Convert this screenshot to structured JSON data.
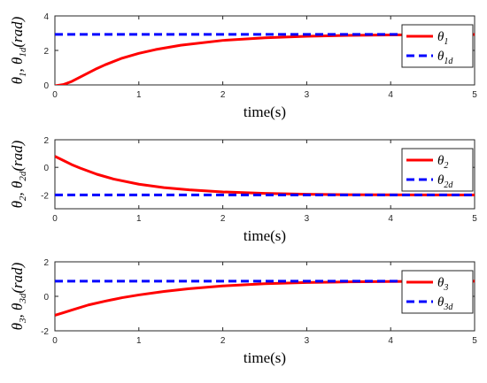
{
  "chart_data": [
    {
      "type": "line",
      "xlabel": "time(s)",
      "ylabel": "θ1, θ1d(rad)",
      "xlim": [
        0,
        5
      ],
      "ylim": [
        0,
        4
      ],
      "xticks": [
        "0",
        "1",
        "2",
        "3",
        "4",
        "5"
      ],
      "yticks": [
        "0",
        "2",
        "4"
      ],
      "grid": false,
      "legend_position": "top-right",
      "series": [
        {
          "name": "θ1",
          "color": "#ff0000",
          "style": "solid",
          "x": [
            0,
            0.1,
            0.2,
            0.3,
            0.4,
            0.5,
            0.6,
            0.8,
            1.0,
            1.2,
            1.5,
            2.0,
            2.5,
            3.0,
            3.5,
            4.0,
            4.5,
            5.0
          ],
          "y": [
            -0.05,
            0.02,
            0.2,
            0.45,
            0.7,
            0.95,
            1.17,
            1.55,
            1.83,
            2.05,
            2.3,
            2.58,
            2.73,
            2.82,
            2.87,
            2.9,
            2.91,
            2.92
          ]
        },
        {
          "name": "θ1d",
          "color": "#0000ff",
          "style": "dashed",
          "x": [
            0,
            5
          ],
          "y": [
            2.93,
            2.93
          ]
        }
      ]
    },
    {
      "type": "line",
      "xlabel": "time(s)",
      "ylabel": "θ2, θ2d(rad)",
      "xlim": [
        0,
        5
      ],
      "ylim": [
        -3,
        2
      ],
      "xticks": [
        "0",
        "1",
        "2",
        "3",
        "4",
        "5"
      ],
      "yticks": [
        "-2",
        "0",
        "2"
      ],
      "grid": false,
      "legend_position": "top-right",
      "series": [
        {
          "name": "θ2",
          "color": "#ff0000",
          "style": "solid",
          "x": [
            0,
            0.1,
            0.2,
            0.3,
            0.5,
            0.7,
            1.0,
            1.3,
            1.6,
            2.0,
            2.5,
            3.0,
            3.5,
            4.0,
            4.5,
            5.0
          ],
          "y": [
            0.8,
            0.5,
            0.2,
            -0.05,
            -0.5,
            -0.85,
            -1.22,
            -1.47,
            -1.63,
            -1.78,
            -1.89,
            -1.95,
            -1.98,
            -1.99,
            -2.0,
            -2.0
          ]
        },
        {
          "name": "θ2d",
          "color": "#0000ff",
          "style": "dashed",
          "x": [
            0,
            5
          ],
          "y": [
            -2.0,
            -2.0
          ]
        }
      ]
    },
    {
      "type": "line",
      "xlabel": "time(s)",
      "ylabel": "θ3, θ3d(rad)",
      "xlim": [
        0,
        5
      ],
      "ylim": [
        -2,
        2
      ],
      "xticks": [
        "0",
        "1",
        "2",
        "3",
        "4",
        "5"
      ],
      "yticks": [
        "-2",
        "0",
        "2"
      ],
      "grid": false,
      "legend_position": "top-right",
      "series": [
        {
          "name": "θ3",
          "color": "#ff0000",
          "style": "solid",
          "x": [
            0,
            0.1,
            0.2,
            0.4,
            0.6,
            0.8,
            1.0,
            1.3,
            1.6,
            2.0,
            2.5,
            3.0,
            3.5,
            4.0,
            4.5,
            5.0
          ],
          "y": [
            -1.1,
            -0.95,
            -0.8,
            -0.5,
            -0.28,
            -0.08,
            0.08,
            0.28,
            0.44,
            0.6,
            0.73,
            0.8,
            0.84,
            0.86,
            0.87,
            0.88
          ]
        },
        {
          "name": "θ3d",
          "color": "#0000ff",
          "style": "dashed",
          "x": [
            0,
            5
          ],
          "y": [
            0.88,
            0.88
          ]
        }
      ]
    }
  ]
}
